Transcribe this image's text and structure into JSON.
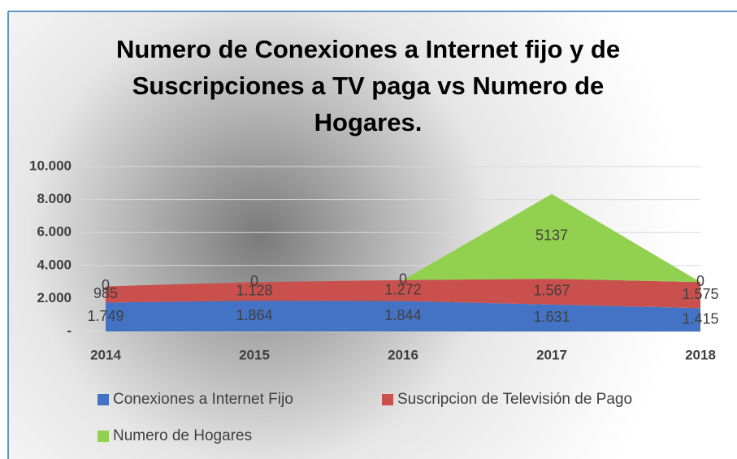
{
  "chart_data": {
    "type": "stacked_area",
    "title": "Numero de Conexiones a Internet fijo y de Suscripciones a TV paga vs Numero de Hogares.",
    "categories": [
      "2014",
      "2015",
      "2016",
      "2017",
      "2018"
    ],
    "series": [
      {
        "name": "Conexiones a Internet Fijo",
        "color": "#4472c4",
        "values": [
          1749,
          1864,
          1844,
          1631,
          1415
        ],
        "value_labels": [
          "1.749",
          "1.864",
          "1.844",
          "1.631",
          "1.415"
        ]
      },
      {
        "name": "Suscripcion de Televisión de Pago",
        "color": "#c9504d",
        "values": [
          985,
          1128,
          1272,
          1567,
          1575
        ],
        "value_labels": [
          "985",
          "1.128",
          "1.272",
          "1.567",
          "1.575"
        ]
      },
      {
        "name": "Numero de Hogares",
        "color": "#92d050",
        "values": [
          0,
          0,
          0,
          5137,
          0
        ]
      }
    ],
    "ylim": [
      0,
      10000
    ],
    "yticks": [
      {
        "value": 0,
        "label": "-"
      },
      {
        "value": 2000,
        "label": "2.000"
      },
      {
        "value": 4000,
        "label": "4.000"
      },
      {
        "value": 6000,
        "label": "6.000"
      },
      {
        "value": 8000,
        "label": "8.000"
      },
      {
        "value": 10000,
        "label": "10.000"
      }
    ],
    "grid": true,
    "legend": "bottom"
  }
}
